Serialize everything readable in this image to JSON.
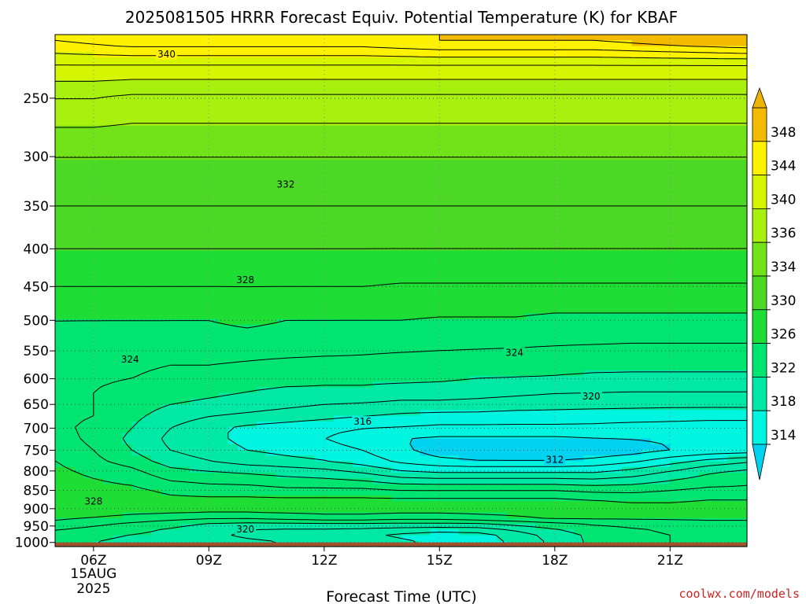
{
  "chart_data": {
    "type": "contour",
    "title": "2025081505 HRRR Forecast Equiv. Potential Temperature (K) for KBAF",
    "xlabel": "Forecast Time (UTC)",
    "ylabel": "",
    "credit": "coolwx.com/models",
    "x_ticks": [
      {
        "hour": 6,
        "label": "06Z",
        "sub1": "15AUG",
        "sub2": "2025"
      },
      {
        "hour": 9,
        "label": "09Z"
      },
      {
        "hour": 12,
        "label": "12Z"
      },
      {
        "hour": 15,
        "label": "15Z"
      },
      {
        "hour": 18,
        "label": "18Z"
      },
      {
        "hour": 21,
        "label": "21Z"
      }
    ],
    "xlim": [
      5,
      23
    ],
    "y_ticks": [
      250,
      300,
      350,
      400,
      450,
      500,
      550,
      600,
      650,
      700,
      750,
      800,
      850,
      900,
      950,
      1000
    ],
    "ylim": [
      1013,
      205
    ],
    "yscale": "log",
    "grid": "dotted",
    "colorbar": {
      "labels": [
        348,
        344,
        340,
        336,
        334,
        330,
        326,
        322,
        318,
        314
      ],
      "bands": [
        {
          "from": 314,
          "to": 318,
          "color": "#00f5e0"
        },
        {
          "from": 318,
          "to": 322,
          "color": "#00e8a6"
        },
        {
          "from": 322,
          "to": 326,
          "color": "#00e472"
        },
        {
          "from": 326,
          "to": 330,
          "color": "#1ede35"
        },
        {
          "from": 330,
          "to": 334,
          "color": "#4cd925"
        },
        {
          "from": 334,
          "to": 336,
          "color": "#72e319"
        },
        {
          "from": 336,
          "to": 340,
          "color": "#a8f00e"
        },
        {
          "from": 340,
          "to": 344,
          "color": "#d6f500"
        },
        {
          "from": 344,
          "to": 348,
          "color": "#fff200"
        },
        {
          "from": 348,
          "to": 352,
          "color": "#f2bb00"
        }
      ],
      "low_color": "#00d2f0",
      "high_color": "#eeb200"
    },
    "contour_labels": [
      {
        "value": 340,
        "hour": 7.9,
        "pressure": 218
      },
      {
        "value": 332,
        "hour": 11.0,
        "pressure": 327
      },
      {
        "value": 328,
        "hour": 9.95,
        "pressure": 441
      },
      {
        "value": 324,
        "hour": 6.95,
        "pressure": 565
      },
      {
        "value": 324,
        "hour": 16.95,
        "pressure": 553
      },
      {
        "value": 320,
        "hour": 18.95,
        "pressure": 634
      },
      {
        "value": 316,
        "hour": 13.0,
        "pressure": 686
      },
      {
        "value": 312,
        "hour": 18.0,
        "pressure": 772
      },
      {
        "value": 328,
        "hour": 6.0,
        "pressure": 880
      },
      {
        "value": 320,
        "hour": 9.95,
        "pressure": 960
      }
    ],
    "profile": {
      "pressure": [
        1000,
        975,
        950,
        925,
        900,
        875,
        850,
        800,
        775,
        750,
        725,
        700,
        675,
        650,
        625,
        600,
        575,
        550,
        500,
        450,
        400,
        350,
        300,
        250,
        225,
        210
      ],
      "hours": [
        5,
        6,
        7,
        8,
        9,
        10,
        11,
        12,
        13,
        14,
        15,
        16,
        17,
        18,
        19,
        20,
        21,
        22,
        23
      ],
      "theta_e": [
        [
          322.5,
          322.0,
          321.5,
          321.0,
          321.0,
          320.5,
          320.0,
          320.0,
          319.5,
          318.5,
          317.5,
          316.8,
          318.5,
          320.5,
          322.5,
          323.5,
          324.0,
          324.5,
          324.5
        ],
        [
          323.0,
          322.5,
          322.0,
          321.5,
          320.5,
          319.5,
          319.0,
          319.0,
          318.5,
          317.5,
          316.8,
          317.2,
          319.0,
          321.0,
          322.5,
          323.5,
          324.0,
          324.5,
          324.5
        ],
        [
          325.0,
          324.0,
          323.0,
          322.0,
          321.0,
          320.5,
          320.5,
          320.5,
          320.5,
          320.5,
          320.5,
          320.5,
          321.5,
          322.5,
          323.5,
          324.0,
          324.5,
          325.0,
          325.0
        ],
        [
          326.5,
          326.0,
          325.5,
          325.0,
          324.5,
          324.5,
          325.0,
          325.5,
          325.5,
          325.0,
          325.0,
          325.5,
          326.0,
          326.5,
          326.5,
          326.5,
          326.5,
          326.5,
          326.5
        ],
        [
          327.5,
          327.5,
          327.0,
          327.0,
          327.0,
          327.0,
          327.0,
          327.0,
          327.0,
          327.0,
          327.0,
          327.0,
          327.0,
          327.0,
          327.0,
          327.0,
          327.0,
          327.0,
          327.0
        ],
        [
          327.5,
          327.5,
          327.5,
          326.5,
          326.5,
          326.5,
          326.5,
          326.5,
          326.5,
          326.5,
          326.5,
          326.5,
          326.5,
          326.5,
          326.0,
          325.5,
          325.5,
          326.0,
          326.0
        ],
        [
          327.0,
          326.8,
          326.5,
          325.5,
          325.0,
          325.0,
          324.5,
          324.5,
          324.5,
          324.0,
          324.0,
          324.0,
          324.0,
          324.0,
          323.5,
          323.5,
          324.0,
          324.5,
          324.5
        ],
        [
          326.5,
          325.5,
          324.5,
          322.5,
          322.0,
          321.5,
          321.0,
          320.5,
          319.5,
          318.0,
          317.5,
          317.5,
          317.5,
          317.5,
          317.5,
          318.5,
          320.0,
          321.5,
          322.5
        ],
        [
          326.0,
          324.5,
          323.0,
          321.0,
          320.0,
          319.0,
          318.5,
          318.0,
          317.0,
          315.5,
          314.5,
          314.0,
          314.0,
          314.0,
          314.5,
          315.5,
          317.0,
          318.5,
          319.5
        ],
        [
          325.5,
          324.0,
          322.0,
          320.0,
          319.0,
          318.0,
          317.5,
          317.0,
          316.0,
          314.5,
          313.0,
          312.5,
          312.0,
          312.0,
          312.5,
          313.0,
          314.0,
          314.5,
          314.8
        ],
        [
          325.0,
          323.5,
          321.5,
          319.5,
          318.5,
          317.5,
          316.8,
          316.0,
          315.0,
          314.0,
          313.5,
          313.5,
          313.5,
          313.5,
          313.8,
          314.0,
          314.2,
          314.5,
          314.5
        ],
        [
          324.5,
          323.5,
          322.0,
          320.0,
          318.5,
          317.5,
          317.0,
          316.5,
          316.0,
          315.8,
          315.5,
          315.5,
          315.5,
          315.5,
          315.5,
          315.3,
          315.2,
          315.0,
          315.0
        ],
        [
          324.5,
          324.0,
          322.5,
          321.0,
          320.0,
          319.5,
          319.0,
          318.5,
          318.0,
          317.5,
          317.2,
          317.2,
          317.0,
          317.0,
          316.8,
          316.7,
          316.6,
          316.5,
          316.5
        ],
        [
          324.5,
          324.0,
          323.0,
          322.0,
          321.5,
          321.0,
          320.5,
          320.0,
          319.8,
          319.5,
          319.5,
          319.3,
          319.0,
          318.8,
          318.7,
          318.6,
          318.5,
          318.5,
          318.5
        ],
        [
          324.5,
          324.0,
          323.5,
          323.0,
          322.5,
          322.0,
          321.5,
          321.5,
          321.5,
          321.0,
          321.0,
          320.8,
          320.5,
          320.2,
          320.1,
          320.0,
          320.0,
          320.0,
          320.0
        ],
        [
          324.5,
          324.2,
          324.0,
          323.5,
          323.5,
          323.0,
          322.8,
          322.5,
          322.5,
          322.5,
          322.3,
          322.0,
          321.9,
          321.8,
          321.6,
          321.5,
          321.5,
          321.5,
          321.5
        ],
        [
          324.5,
          324.5,
          324.3,
          324.0,
          324.0,
          323.8,
          323.6,
          323.5,
          323.5,
          323.2,
          323.0,
          322.9,
          322.8,
          322.6,
          322.5,
          322.5,
          322.5,
          322.5,
          322.5
        ],
        [
          325.0,
          324.8,
          324.7,
          324.6,
          324.6,
          324.5,
          324.4,
          324.3,
          324.2,
          324.1,
          324.0,
          323.9,
          323.8,
          323.7,
          323.6,
          323.5,
          323.5,
          323.5,
          323.5
        ],
        [
          326.0,
          326.0,
          326.0,
          326.0,
          326.0,
          326.5,
          326.0,
          326.0,
          326.0,
          326.0,
          325.8,
          325.8,
          325.8,
          325.5,
          325.5,
          325.5,
          325.5,
          325.5,
          325.5
        ],
        [
          328.0,
          328.0,
          328.0,
          328.0,
          328.0,
          328.0,
          328.0,
          328.0,
          328.0,
          327.8,
          327.8,
          327.8,
          327.8,
          327.8,
          327.8,
          327.8,
          327.8,
          327.8,
          327.8
        ],
        [
          330.0,
          330.0,
          330.0,
          330.0,
          330.0,
          330.0,
          330.0,
          330.0,
          330.0,
          330.0,
          330.0,
          330.0,
          330.0,
          330.0,
          330.0,
          330.0,
          330.0,
          330.0,
          330.0
        ],
        [
          332.0,
          332.0,
          332.0,
          332.0,
          332.0,
          332.0,
          332.0,
          332.0,
          332.0,
          332.0,
          332.0,
          332.0,
          332.0,
          332.0,
          332.0,
          332.0,
          332.0,
          332.0,
          332.0
        ],
        [
          334.0,
          334.0,
          334.0,
          334.0,
          334.0,
          334.0,
          334.0,
          334.0,
          334.0,
          334.0,
          334.0,
          334.0,
          334.0,
          334.0,
          334.0,
          334.0,
          334.0,
          334.0,
          334.0
        ],
        [
          338.0,
          338.0,
          337.5,
          337.5,
          337.5,
          337.5,
          337.5,
          337.5,
          337.5,
          337.5,
          337.5,
          337.5,
          337.5,
          337.5,
          337.5,
          337.5,
          337.5,
          337.5,
          337.5
        ],
        [
          342.0,
          342.0,
          342.0,
          342.0,
          342.0,
          342.0,
          342.0,
          342.0,
          342.0,
          342.0,
          342.0,
          342.0,
          342.0,
          342.0,
          342.0,
          342.0,
          342.0,
          342.0,
          342.0
        ],
        [
          346.0,
          346.5,
          347.0,
          347.0,
          347.0,
          347.0,
          347.0,
          347.0,
          347.0,
          347.5,
          348.0,
          348.0,
          348.0,
          348.0,
          348.0,
          348.5,
          349.0,
          349.5,
          350.0
        ]
      ]
    },
    "contour_levels": [
      312,
      314,
      316,
      318,
      320,
      322,
      324,
      326,
      328,
      330,
      332,
      334,
      336,
      338,
      340,
      342,
      344,
      346,
      348
    ],
    "ground_color": "#a0522d"
  }
}
